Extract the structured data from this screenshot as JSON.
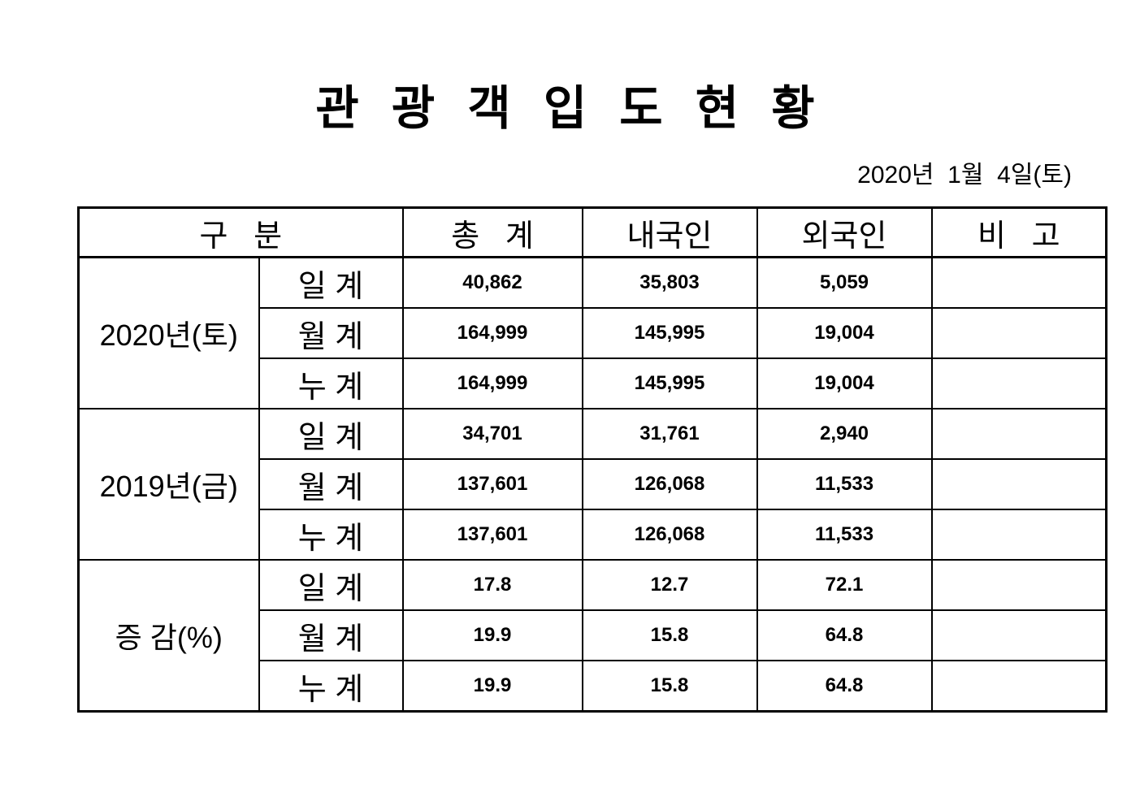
{
  "page": {
    "title": "관 광 객 입 도 현 황",
    "date": "2020년  1월  4일(토)"
  },
  "table": {
    "headers": {
      "category": "구   분",
      "total": "총   계",
      "domestic": "내국인",
      "foreign": "외국인",
      "note": "비   고"
    },
    "groups": [
      {
        "label": "2020년(토)",
        "rows": [
          {
            "label": "일 계",
            "total": "40,862",
            "domestic": "35,803",
            "foreign": "5,059",
            "note": ""
          },
          {
            "label": "월 계",
            "total": "164,999",
            "domestic": "145,995",
            "foreign": "19,004",
            "note": ""
          },
          {
            "label": "누 계",
            "total": "164,999",
            "domestic": "145,995",
            "foreign": "19,004",
            "note": ""
          }
        ]
      },
      {
        "label": "2019년(금)",
        "rows": [
          {
            "label": "일 계",
            "total": "34,701",
            "domestic": "31,761",
            "foreign": "2,940",
            "note": ""
          },
          {
            "label": "월 계",
            "total": "137,601",
            "domestic": "126,068",
            "foreign": "11,533",
            "note": ""
          },
          {
            "label": "누 계",
            "total": "137,601",
            "domestic": "126,068",
            "foreign": "11,533",
            "note": ""
          }
        ]
      },
      {
        "label": "증 감(%)",
        "rows": [
          {
            "label": "일 계",
            "total": "17.8",
            "domestic": "12.7",
            "foreign": "72.1",
            "note": ""
          },
          {
            "label": "월 계",
            "total": "19.9",
            "domestic": "15.8",
            "foreign": "64.8",
            "note": ""
          },
          {
            "label": "누 계",
            "total": "19.9",
            "domestic": "15.8",
            "foreign": "64.8",
            "note": ""
          }
        ]
      }
    ]
  }
}
